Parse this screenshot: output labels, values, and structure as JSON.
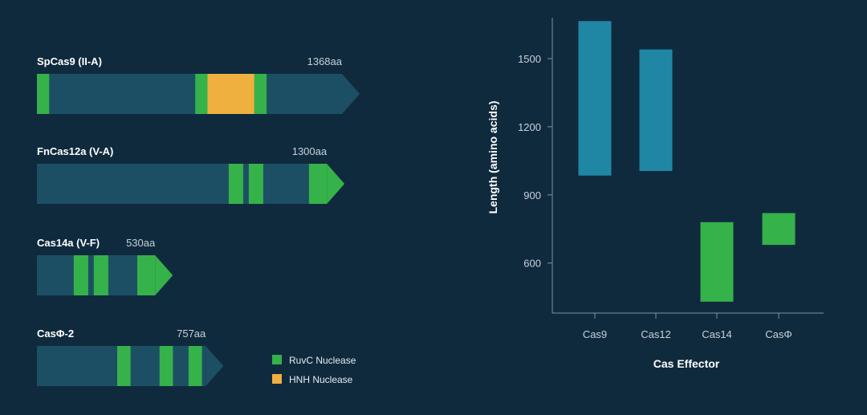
{
  "colors": {
    "background": "#0f2a3d",
    "protein_body": "#1d4f64",
    "ruvc": "#35b24a",
    "hnh": "#f0b03f",
    "cas12_bar": "#1f86a4",
    "axis": "#7e93a1"
  },
  "proteins": [
    {
      "name": "SpCas9 (II-A)",
      "length_label": "1368aa",
      "length": 1368,
      "domains": [
        {
          "type": "RuvC",
          "start": 0,
          "end": 55
        },
        {
          "type": "RuvC",
          "start": 710,
          "end": 765
        },
        {
          "type": "HNH",
          "start": 765,
          "end": 975
        },
        {
          "type": "RuvC",
          "start": 975,
          "end": 1030
        }
      ]
    },
    {
      "name": "FnCas12a (V-A)",
      "length_label": "1300aa",
      "length": 1300,
      "domains": [
        {
          "type": "RuvC",
          "start": 860,
          "end": 925
        },
        {
          "type": "RuvC",
          "start": 950,
          "end": 1015
        },
        {
          "type": "RuvC",
          "start": 1220,
          "end": 1300
        }
      ]
    },
    {
      "name": "Cas14a (V-F)",
      "length_label": "530aa",
      "length": 530,
      "domains": [
        {
          "type": "RuvC",
          "start": 165,
          "end": 230
        },
        {
          "type": "RuvC",
          "start": 255,
          "end": 320
        },
        {
          "type": "RuvC",
          "start": 450,
          "end": 530
        }
      ]
    },
    {
      "name": "CasΦ-2",
      "length_label": "757aa",
      "length": 757,
      "domains": [
        {
          "type": "RuvC",
          "start": 360,
          "end": 420
        },
        {
          "type": "RuvC",
          "start": 550,
          "end": 610
        },
        {
          "type": "RuvC",
          "start": 680,
          "end": 740
        }
      ]
    }
  ],
  "legend": [
    {
      "key": "RuvC",
      "label": "RuvC Nuclease",
      "color": "#35b24a"
    },
    {
      "key": "HNH",
      "label": "HNH Nuclease",
      "color": "#f0b03f"
    }
  ],
  "chart_data": {
    "type": "bar",
    "categories": [
      "Cas9",
      "Cas12",
      "Cas14",
      "CasΦ"
    ],
    "ranges": [
      {
        "category": "Cas9",
        "low": 985,
        "high": 1665,
        "color": "#1f86a4"
      },
      {
        "category": "Cas12",
        "low": 1005,
        "high": 1540,
        "color": "#1f86a4"
      },
      {
        "category": "Cas14",
        "low": 430,
        "high": 780,
        "color": "#35b24a"
      },
      {
        "category": "CasΦ",
        "low": 680,
        "high": 820,
        "color": "#35b24a"
      }
    ],
    "xlabel": "Cas Effector",
    "ylabel": "Length (amino acids)",
    "yticks": [
      600,
      900,
      1200,
      1500
    ],
    "ylim": [
      380,
      1680
    ],
    "grid": false
  }
}
